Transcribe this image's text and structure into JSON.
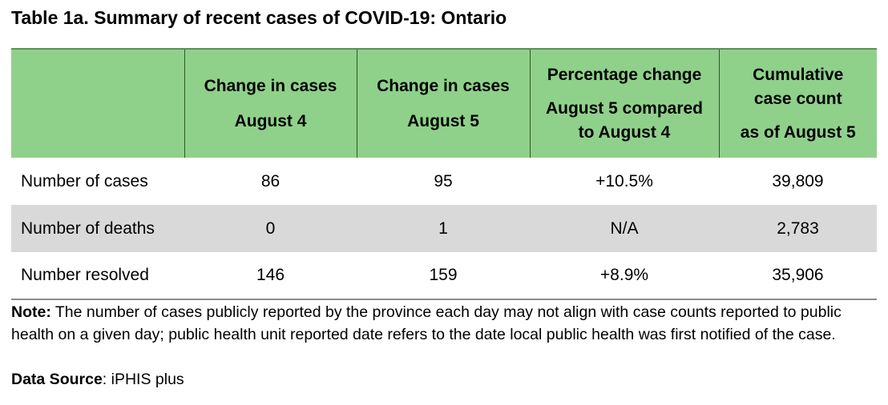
{
  "title": "Table 1a. Summary of recent cases of COVID-19: Ontario",
  "table": {
    "header_color": "#8fd18a",
    "shade_color": "#d9d9d9",
    "headers": [
      {
        "lines": [
          ""
        ]
      },
      {
        "lines": [
          "Change in cases",
          "August 4"
        ]
      },
      {
        "lines": [
          "Change in cases",
          "August 5"
        ]
      },
      {
        "lines": [
          "Percentage change",
          "August 5 compared",
          "to August 4"
        ]
      },
      {
        "lines": [
          "Cumulative",
          "case count",
          "as of August 5"
        ]
      }
    ],
    "rows": [
      {
        "label": "Number of cases",
        "values": [
          "86",
          "95",
          "+10.5%",
          "39,809"
        ]
      },
      {
        "label": "Number of deaths",
        "values": [
          "0",
          "1",
          "N/A",
          "2,783"
        ]
      },
      {
        "label": "Number resolved",
        "values": [
          "146",
          "159",
          "+8.9%",
          "35,906"
        ]
      }
    ]
  },
  "note": {
    "label": "Note:",
    "text": " The number of cases publicly reported by the province each day may not align with case counts reported to public health on a given day; public health unit reported date refers to the date local public health was first notified of the case."
  },
  "source": {
    "label": "Data Source",
    "text": ": iPHIS plus"
  }
}
